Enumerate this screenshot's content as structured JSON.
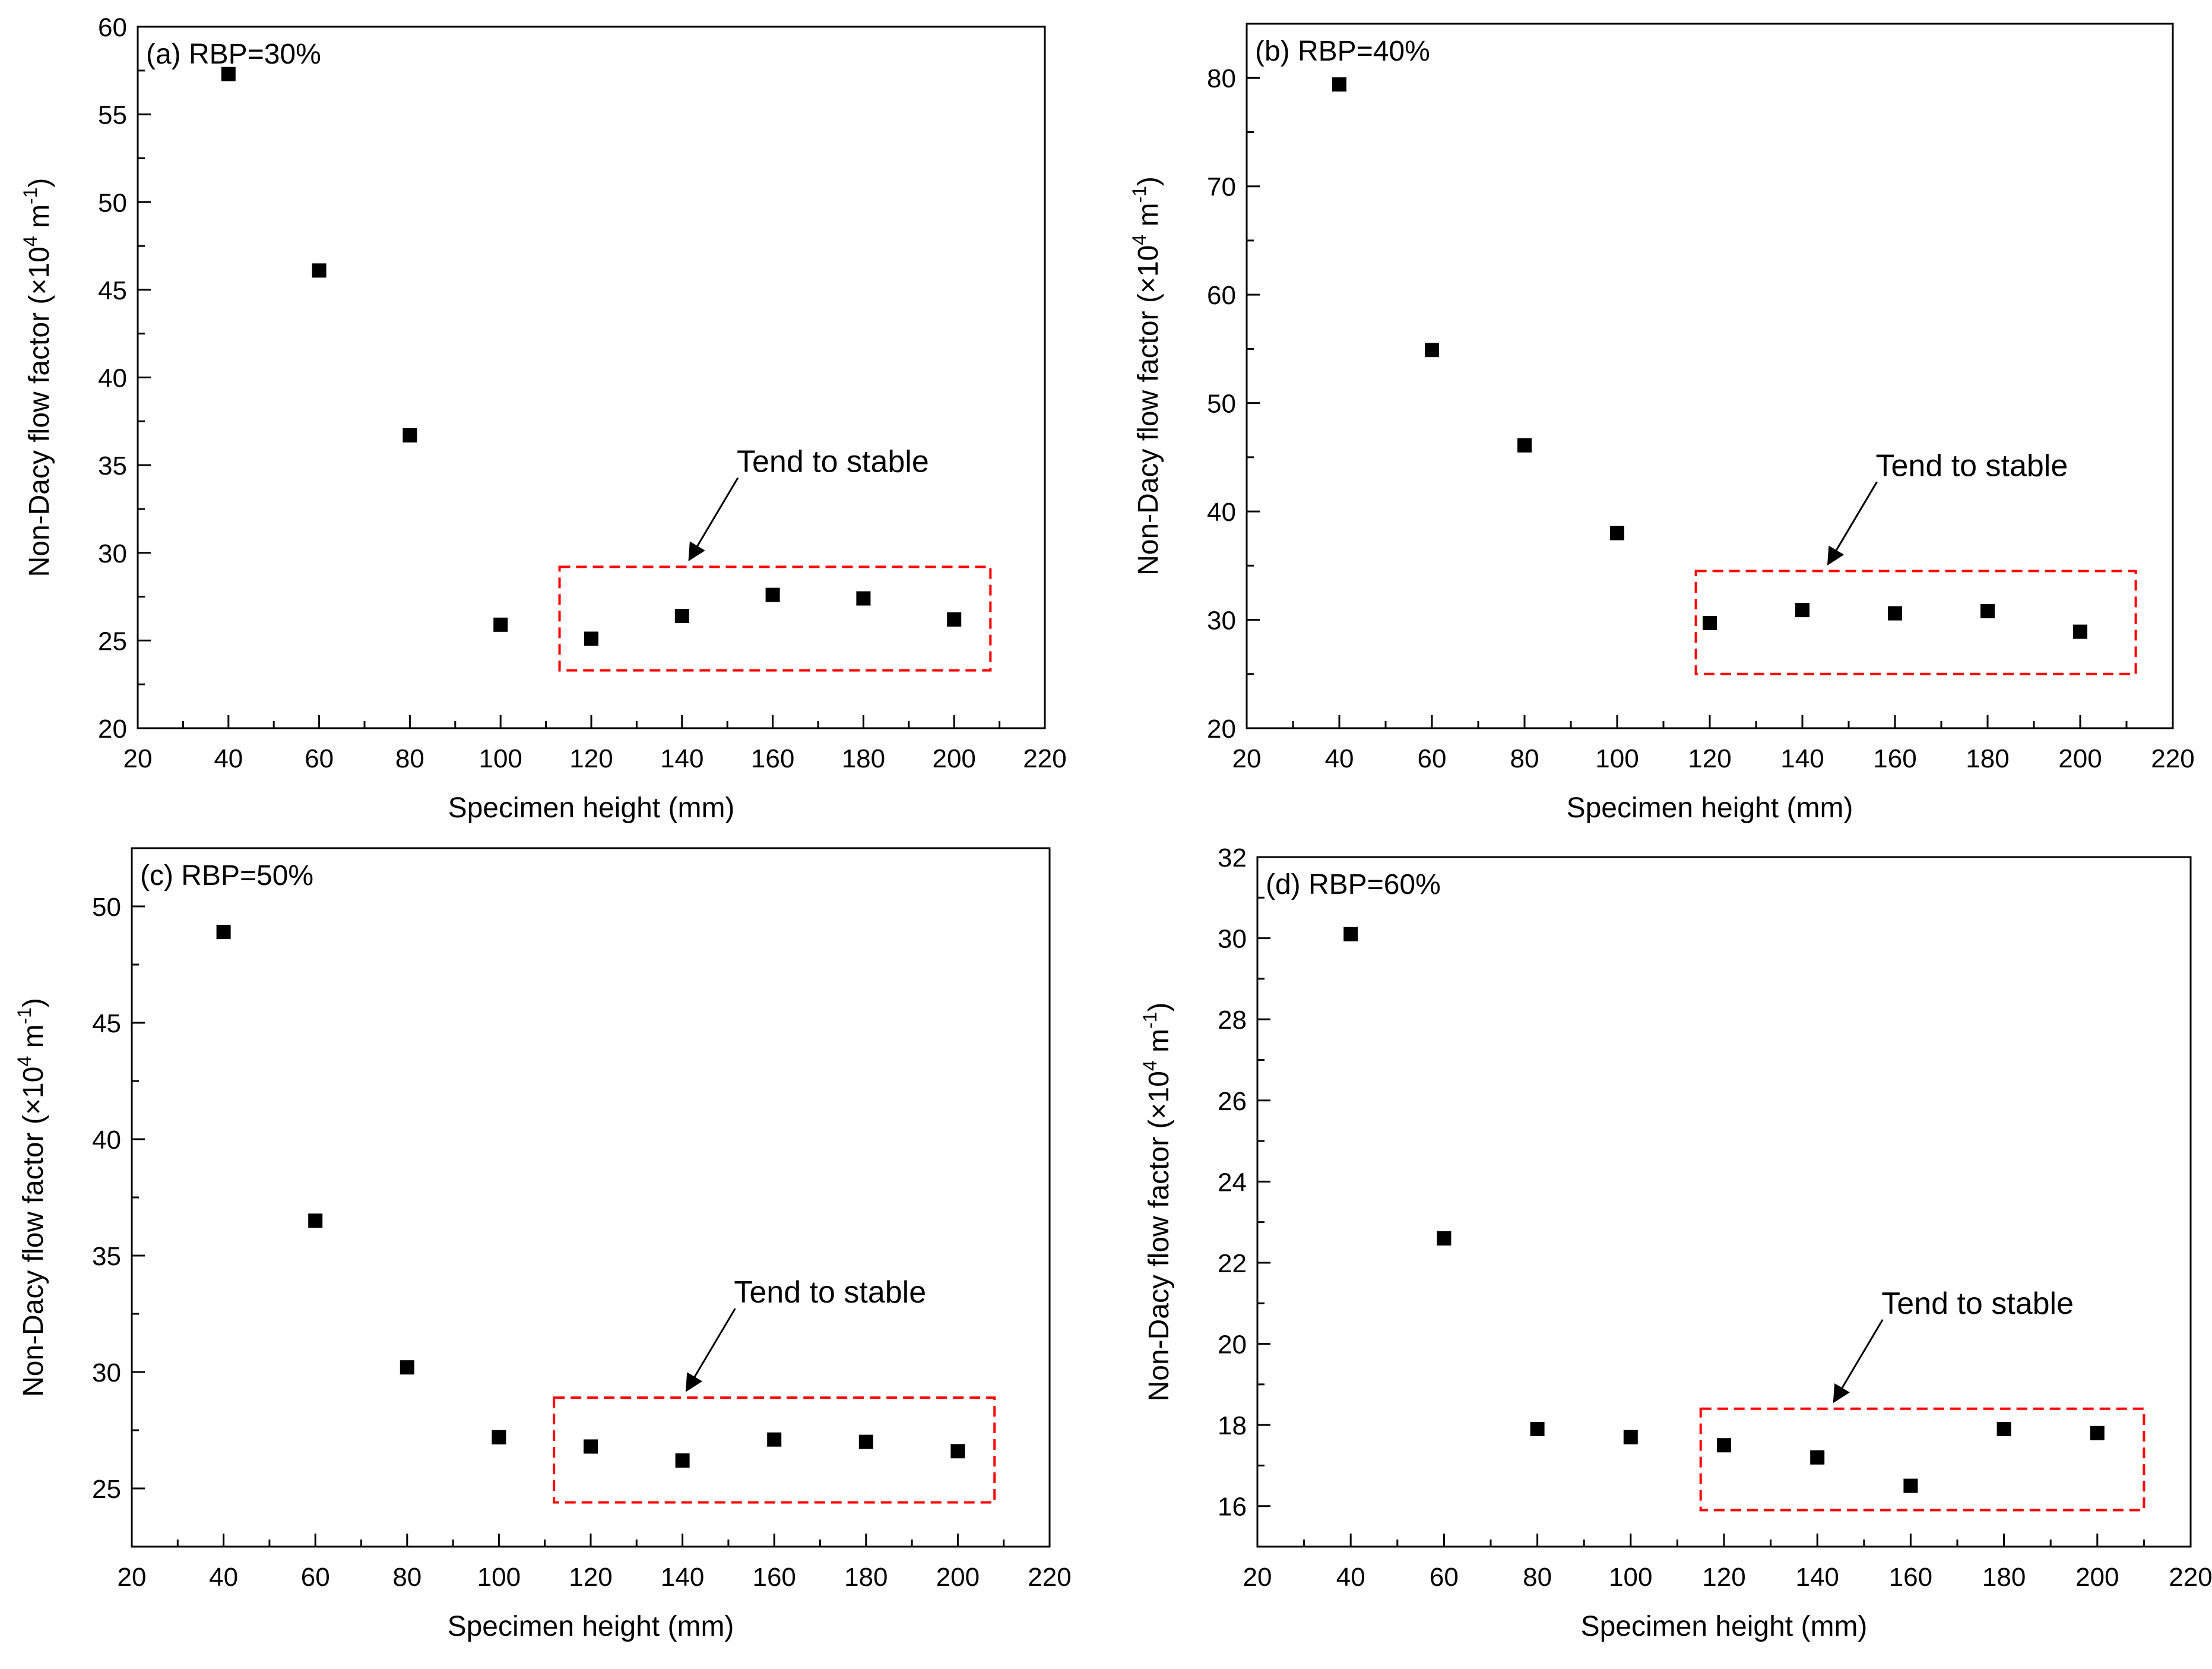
{
  "chart_data": [
    {
      "type": "scatter",
      "title": "",
      "panel_label": "(a) RBP=30%",
      "xlabel": "Specimen height (mm)",
      "ylabel": "Non-Dacy flow factor (×10",
      "ylabel_sup1": "4",
      "ylabel_mid": " m",
      "ylabel_sup2": "-1",
      "ylabel_end": ")",
      "xlim": [
        20,
        220
      ],
      "ylim": [
        20,
        60
      ],
      "xticks": [
        20,
        40,
        60,
        80,
        100,
        120,
        140,
        160,
        180,
        200,
        220
      ],
      "yticks": [
        20,
        25,
        30,
        35,
        40,
        45,
        50,
        55,
        60
      ],
      "series": [
        {
          "name": "RBP=30%",
          "x": [
            40,
            60,
            80,
            100,
            120,
            140,
            160,
            180,
            200
          ],
          "y": [
            57.3,
            46.1,
            36.7,
            25.9,
            25.1,
            26.4,
            27.6,
            27.4,
            26.2
          ]
        }
      ],
      "annotation": {
        "text": "Tend to stable",
        "box_x": [
          113,
          208
        ],
        "box_y": [
          23.3,
          29.2
        ]
      },
      "grid": false
    },
    {
      "type": "scatter",
      "title": "",
      "panel_label": "(b) RBP=40%",
      "xlabel": "Specimen height (mm)",
      "ylabel": "Non-Dacy flow factor (×10",
      "ylabel_sup1": "4",
      "ylabel_mid": " m",
      "ylabel_sup2": "-1",
      "ylabel_end": ")",
      "xlim": [
        20,
        220
      ],
      "ylim": [
        20,
        85
      ],
      "xticks": [
        20,
        40,
        60,
        80,
        100,
        120,
        140,
        160,
        180,
        200,
        220
      ],
      "yticks": [
        20,
        30,
        40,
        50,
        60,
        70,
        80
      ],
      "series": [
        {
          "name": "RBP=40%",
          "x": [
            40,
            60,
            80,
            100,
            120,
            140,
            160,
            180,
            200
          ],
          "y": [
            79.4,
            54.9,
            46.1,
            38.0,
            29.7,
            30.9,
            30.6,
            30.8,
            28.9
          ]
        }
      ],
      "annotation": {
        "text": "Tend to stable",
        "box_x": [
          117,
          212
        ],
        "box_y": [
          25.0,
          34.5
        ]
      },
      "grid": false
    },
    {
      "type": "scatter",
      "title": "",
      "panel_label": "(c) RBP=50%",
      "xlabel": "Specimen height (mm)",
      "ylabel": "Non-Dacy flow factor (×10",
      "ylabel_sup1": "4",
      "ylabel_mid": " m",
      "ylabel_sup2": "-1",
      "ylabel_end": ")",
      "xlim": [
        20,
        220
      ],
      "ylim": [
        22.5,
        52.5
      ],
      "xticks": [
        20,
        40,
        60,
        80,
        100,
        120,
        140,
        160,
        180,
        200,
        220
      ],
      "yticks": [
        25,
        30,
        35,
        40,
        45,
        50
      ],
      "series": [
        {
          "name": "RBP=50%",
          "x": [
            40,
            60,
            80,
            100,
            120,
            140,
            160,
            180,
            200
          ],
          "y": [
            48.9,
            36.5,
            30.2,
            27.2,
            26.8,
            26.2,
            27.1,
            27.0,
            26.6
          ]
        }
      ],
      "annotation": {
        "text": "Tend to stable",
        "box_x": [
          112,
          208
        ],
        "box_y": [
          24.4,
          28.9
        ]
      },
      "grid": false
    },
    {
      "type": "scatter",
      "title": "",
      "panel_label": "(d) RBP=60%",
      "xlabel": "Specimen height (mm)",
      "ylabel": "Non-Dacy flow factor (×10",
      "ylabel_sup1": "4",
      "ylabel_mid": " m",
      "ylabel_sup2": "-1",
      "ylabel_end": ")",
      "xlim": [
        20,
        220
      ],
      "ylim": [
        15,
        32
      ],
      "xticks": [
        20,
        40,
        60,
        80,
        100,
        120,
        140,
        160,
        180,
        200,
        220
      ],
      "yticks": [
        16,
        18,
        20,
        22,
        24,
        26,
        28,
        30,
        32
      ],
      "series": [
        {
          "name": "RBP=60%",
          "x": [
            40,
            60,
            80,
            100,
            120,
            140,
            160,
            180,
            200
          ],
          "y": [
            30.1,
            22.6,
            17.9,
            17.7,
            17.5,
            17.2,
            16.5,
            17.9,
            17.8
          ]
        }
      ],
      "annotation": {
        "text": "Tend to stable",
        "box_x": [
          115,
          210
        ],
        "box_y": [
          15.9,
          18.4
        ]
      },
      "grid": false
    }
  ],
  "colors": {
    "marker": "#000000",
    "axis": "#000000",
    "highlight_box": "#ff0000",
    "background": "#ffffff"
  }
}
